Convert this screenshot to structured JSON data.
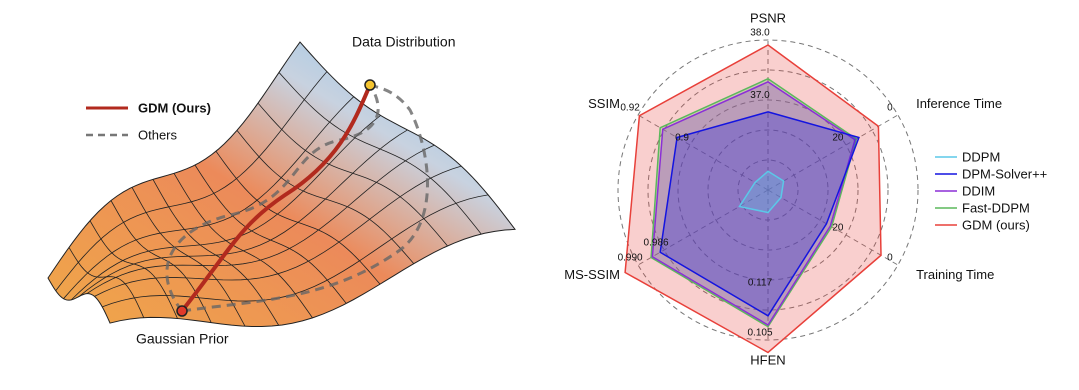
{
  "diagram": {
    "top_label": "Data Distribution",
    "bottom_label": "Gaussian Prior",
    "legend": [
      "GDM (Ours)",
      "Others"
    ]
  },
  "chart_data": {
    "type": "radar",
    "axes": [
      {
        "name": "PSNR",
        "lim": [
          35.6,
          38.0
        ],
        "ticks": [
          {
            "value": 38.0,
            "label": "38.0"
          },
          {
            "value": 37.0,
            "label": "37.0"
          }
        ]
      },
      {
        "name": "Inference Time",
        "lim": [
          50,
          0
        ],
        "ticks": [
          0,
          20
        ]
      },
      {
        "name": "Training Time",
        "lim": [
          50,
          0
        ],
        "ticks": [
          0,
          20
        ]
      },
      {
        "name": "HFEN",
        "lim": [
          0.141,
          0.105
        ],
        "ticks": [
          0.105,
          0.117
        ]
      },
      {
        "name": "MS-SSIM",
        "lim": [
          0.97,
          0.99
        ],
        "ticks": [
          {
            "value": 0.99,
            "label": "0.990"
          },
          0.986
        ]
      },
      {
        "name": "SSIM",
        "lim": [
          0.87,
          0.92
        ],
        "ticks": [
          0.92,
          0.9
        ]
      }
    ],
    "series": [
      {
        "name": "DDPM",
        "color": "#5bc8e8",
        "values": [
          35.9,
          44,
          45,
          0.1356,
          0.9744,
          0.875
        ]
      },
      {
        "name": "DPM-Solver++",
        "color": "#1414e0",
        "values": [
          36.85,
          15,
          27.5,
          0.1108,
          0.9866,
          0.905
        ]
      },
      {
        "name": "DDIM",
        "color": "#8b2fd6",
        "values": [
          37.33,
          16.5,
          26,
          0.1086,
          0.9878,
          0.9105
        ]
      },
      {
        "name": "Fast-DDPM",
        "color": "#5cb85c",
        "values": [
          37.38,
          16,
          25.5,
          0.1082,
          0.988,
          0.9115
        ]
      },
      {
        "name": "GDM (ours)",
        "color": "#e8403a",
        "values": [
          37.92,
          7.5,
          6.5,
          0.102,
          0.992,
          0.9195
        ]
      }
    ]
  }
}
